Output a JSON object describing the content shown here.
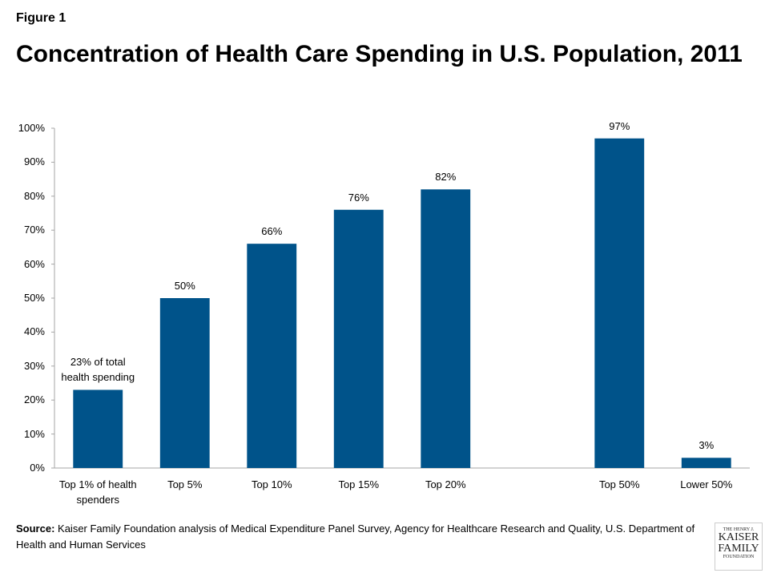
{
  "figure_label": "Figure 1",
  "chart_data": {
    "type": "bar",
    "title": "Concentration of Health Care Spending in U.S. Population, 2011",
    "categories": [
      "Top 1% of health spenders",
      "Top 5%",
      "Top 10%",
      "Top 15%",
      "Top 20%",
      null,
      "Top 50%",
      "Lower 50%"
    ],
    "values": [
      23,
      50,
      66,
      76,
      82,
      null,
      97,
      3
    ],
    "value_labels": [
      "23% of total health spending",
      "50%",
      "66%",
      "76%",
      "82%",
      null,
      "97%",
      "3%"
    ],
    "color": "#00538a",
    "ylim": [
      0,
      100
    ],
    "yticks": [
      {
        "value": 0,
        "label": "0%"
      },
      {
        "value": 10,
        "label": "10%"
      },
      {
        "value": 20,
        "label": "20%"
      },
      {
        "value": 30,
        "label": "30%"
      },
      {
        "value": 40,
        "label": "40%"
      },
      {
        "value": 50,
        "label": "50%"
      },
      {
        "value": 60,
        "label": "60%"
      },
      {
        "value": 70,
        "label": "70%"
      },
      {
        "value": 80,
        "label": "80%"
      },
      {
        "value": 90,
        "label": "90%"
      },
      {
        "value": 100,
        "label": "100%"
      }
    ],
    "grid": false
  },
  "source": {
    "label": "Source:",
    "text": "Kaiser Family Foundation analysis of Medical Expenditure Panel Survey, Agency for Healthcare Research and Quality, U.S. Department of Health and Human Services"
  },
  "logo": [
    "THE HENRY J.",
    "KAISER",
    "FAMILY",
    "FOUNDATION"
  ]
}
